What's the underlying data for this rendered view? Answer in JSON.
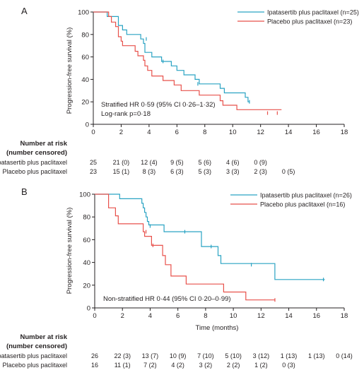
{
  "chart_data": [
    {
      "panel": "A",
      "type": "line",
      "step": true,
      "xlabel": "",
      "ylabel": "Progression-free survival (%)",
      "xlim": [
        0,
        18
      ],
      "ylim": [
        0,
        100
      ],
      "xticks": [
        "0",
        "2",
        "4",
        "6",
        "8",
        "10",
        "12",
        "14",
        "16",
        "18"
      ],
      "yticks": [
        "0",
        "20",
        "40",
        "60",
        "80",
        "100"
      ],
      "grid": false,
      "legend_position": "top-right",
      "annotation_lines": [
        "Stratified HR 0·59 (95% CI 0·26–1·32)",
        "Log-rank p=0·18"
      ],
      "series": [
        {
          "name": "Ipatasertib plus paclitaxel (n=25)",
          "color": "#2aa3c3",
          "points": [
            [
              0,
              100
            ],
            [
              1,
              96
            ],
            [
              1.8,
              88
            ],
            [
              2.1,
              84
            ],
            [
              2.4,
              80
            ],
            [
              3.0,
              80
            ],
            [
              3.4,
              76
            ],
            [
              3.6,
              72
            ],
            [
              3.7,
              64
            ],
            [
              4.2,
              60
            ],
            [
              4.9,
              56
            ],
            [
              5.6,
              52
            ],
            [
              6.0,
              48
            ],
            [
              6.5,
              44
            ],
            [
              7.3,
              40
            ],
            [
              7.6,
              36
            ],
            [
              9.1,
              32
            ],
            [
              9.4,
              28
            ],
            [
              10.9,
              24
            ],
            [
              11.1,
              20
            ],
            [
              11.2,
              20
            ]
          ],
          "censored": [
            [
              3.8,
              76
            ],
            [
              5.0,
              56
            ],
            [
              7.5,
              36
            ],
            [
              11.2,
              20
            ]
          ]
        },
        {
          "name": "Placebo plus paclitaxel (n=23)",
          "color": "#e8514b",
          "points": [
            [
              0,
              100
            ],
            [
              1.1,
              96
            ],
            [
              1.3,
              91
            ],
            [
              1.6,
              87
            ],
            [
              1.8,
              78
            ],
            [
              2.0,
              74
            ],
            [
              2.1,
              70
            ],
            [
              3.0,
              65
            ],
            [
              3.2,
              61
            ],
            [
              3.6,
              57
            ],
            [
              3.7,
              52
            ],
            [
              3.9,
              48
            ],
            [
              4.2,
              43
            ],
            [
              5.0,
              39
            ],
            [
              5.8,
              35
            ],
            [
              6.3,
              30
            ],
            [
              7.6,
              26
            ],
            [
              9.1,
              21
            ],
            [
              9.3,
              17
            ],
            [
              10.3,
              13
            ],
            [
              10.4,
              13
            ],
            [
              13.5,
              13
            ]
          ],
          "censored": [
            [
              12.5,
              10
            ],
            [
              13.2,
              10
            ]
          ]
        }
      ],
      "risk_table": {
        "header": [
          "Number at risk",
          "(number censored)"
        ],
        "times": [
          0,
          2,
          4,
          6,
          8,
          10,
          12,
          14
        ],
        "rows": [
          {
            "label": "Ipatasertib plus paclitaxel",
            "values": [
              "25",
              "21 (0)",
              "12 (4)",
              "9 (5)",
              "5 (6)",
              "4 (6)",
              "0 (9)",
              ""
            ]
          },
          {
            "label": "Placebo plus paclitaxel",
            "values": [
              "23",
              "15 (1)",
              "8 (3)",
              "6 (3)",
              "5 (3)",
              "3 (3)",
              "2 (3)",
              "0 (5)"
            ]
          }
        ]
      }
    },
    {
      "panel": "B",
      "type": "line",
      "step": true,
      "xlabel": "Time (months)",
      "ylabel": "Progression-free survival (%)",
      "xlim": [
        0,
        18
      ],
      "ylim": [
        0,
        100
      ],
      "xticks": [
        "0",
        "2",
        "4",
        "6",
        "8",
        "10",
        "12",
        "14",
        "16",
        "18"
      ],
      "yticks": [
        "0",
        "20",
        "40",
        "60",
        "80",
        "100"
      ],
      "grid": false,
      "legend_position": "top-right",
      "annotation_lines": [
        "Non-stratified HR 0·44 (95% CI 0·20–0·99)"
      ],
      "series": [
        {
          "name": "Ipatasertib plus paclitaxel (n=26)",
          "color": "#2aa3c3",
          "points": [
            [
              0,
              100
            ],
            [
              1.8,
              96
            ],
            [
              3.4,
              92
            ],
            [
              3.5,
              88
            ],
            [
              3.6,
              84
            ],
            [
              3.7,
              80
            ],
            [
              3.8,
              76
            ],
            [
              3.9,
              73
            ],
            [
              5.0,
              67
            ],
            [
              7.7,
              54
            ],
            [
              8.9,
              46
            ],
            [
              9.1,
              39
            ],
            [
              12.9,
              39
            ],
            [
              13.0,
              25
            ],
            [
              16.6,
              25
            ]
          ],
          "censored": [
            [
              4.0,
              72
            ],
            [
              6.5,
              67
            ],
            [
              8.4,
              54
            ],
            [
              11.3,
              38
            ],
            [
              16.5,
              25
            ]
          ]
        },
        {
          "name": "Placebo plus paclitaxel (n=16)",
          "color": "#e8514b",
          "points": [
            [
              0,
              100
            ],
            [
              1.0,
              88
            ],
            [
              1.5,
              81
            ],
            [
              1.7,
              74
            ],
            [
              3.5,
              67
            ],
            [
              3.6,
              63
            ],
            [
              4.1,
              55
            ],
            [
              4.9,
              46
            ],
            [
              5.1,
              38
            ],
            [
              5.5,
              28
            ],
            [
              6.6,
              21
            ],
            [
              9.3,
              14
            ],
            [
              10.9,
              7
            ],
            [
              13.0,
              7
            ]
          ],
          "censored": [
            [
              3.7,
              67
            ],
            [
              4.2,
              55
            ],
            [
              13.0,
              7
            ]
          ]
        }
      ],
      "risk_table": {
        "header": [
          "Number at risk",
          "(number censored)"
        ],
        "times": [
          0,
          2,
          4,
          6,
          8,
          10,
          12,
          14,
          16,
          18
        ],
        "rows": [
          {
            "label": "Ipatasertib plus paclitaxel",
            "values": [
              "26",
              "22 (3)",
              "13 (7)",
              "10 (9)",
              "7 (10)",
              "5 (10)",
              "3 (12)",
              "1 (13)",
              "1 (13)",
              "0 (14)"
            ]
          },
          {
            "label": "Placebo plus paclitaxel",
            "values": [
              "16",
              "11 (1)",
              "7 (2)",
              "4 (2)",
              "3 (2)",
              "2 (2)",
              "1 (2)",
              "0 (3)",
              "",
              ""
            ]
          }
        ]
      }
    }
  ]
}
